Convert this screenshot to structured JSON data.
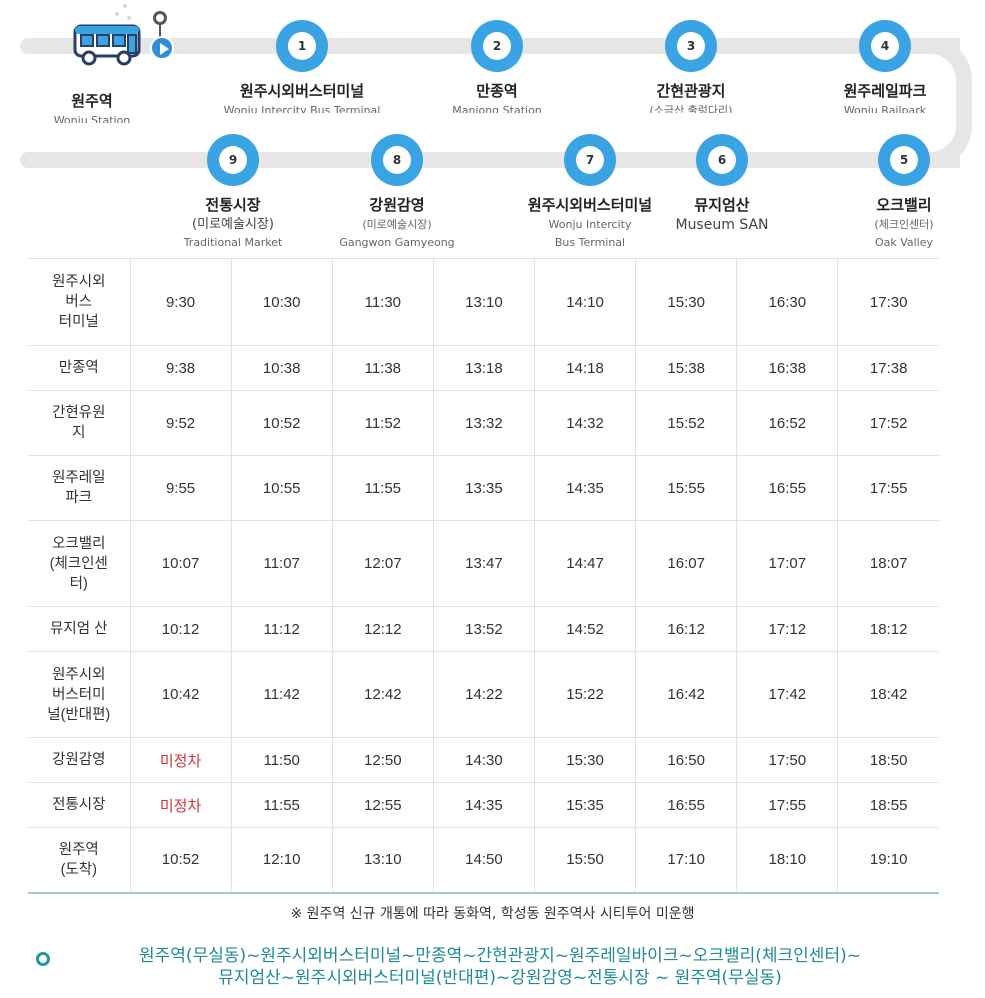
{
  "stops_top": [
    {
      "num": "",
      "name": "원주역",
      "sub": "Wonju Station"
    },
    {
      "num": "1",
      "name": "원주시외버스터미널",
      "sub": "Wonju Intercity Bus Terminal"
    },
    {
      "num": "2",
      "name": "만종역",
      "sub": "Manjong Station"
    },
    {
      "num": "3",
      "name": "간현관광지",
      "sub": "(소금산 출렁다리)"
    },
    {
      "num": "4",
      "name": "원주레일파크",
      "sub": "Wonju Railpark"
    }
  ],
  "stops_bottom": [
    {
      "num": "9",
      "name": "전통시장",
      "sub1": "(미로예술시장)",
      "sub2": "Traditional Market"
    },
    {
      "num": "8",
      "name": "강원감영",
      "sub1": "(미로예술시장)",
      "sub2": "Gangwon Gamyeong"
    },
    {
      "num": "7",
      "name": "원주시외버스터미널",
      "sub1": "Wonju Intercity",
      "sub2": "Bus Terminal"
    },
    {
      "num": "6",
      "name": "뮤지엄산",
      "sub1": "Museum SAN",
      "sub2": ""
    },
    {
      "num": "5",
      "name": "오크밸리",
      "sub1": "(체크인센터)",
      "sub2": "Oak Valley"
    }
  ],
  "timetable": {
    "rows": [
      {
        "station": "원주시외\n버스\n터미널",
        "times": [
          "9:30",
          "10:30",
          "11:30",
          "13:10",
          "14:10",
          "15:30",
          "16:30",
          "17:30"
        ]
      },
      {
        "station": "만종역",
        "times": [
          "9:38",
          "10:38",
          "11:38",
          "13:18",
          "14:18",
          "15:38",
          "16:38",
          "17:38"
        ]
      },
      {
        "station": "간현유원\n지",
        "times": [
          "9:52",
          "10:52",
          "11:52",
          "13:32",
          "14:32",
          "15:52",
          "16:52",
          "17:52"
        ]
      },
      {
        "station": "원주레일\n파크",
        "times": [
          "9:55",
          "10:55",
          "11:55",
          "13:35",
          "14:35",
          "15:55",
          "16:55",
          "17:55"
        ]
      },
      {
        "station": "오크밸리\n(체크인센\n터)",
        "times": [
          "10:07",
          "11:07",
          "12:07",
          "13:47",
          "14:47",
          "16:07",
          "17:07",
          "18:07"
        ]
      },
      {
        "station": "뮤지엄 산",
        "times": [
          "10:12",
          "11:12",
          "12:12",
          "13:52",
          "14:52",
          "16:12",
          "17:12",
          "18:12"
        ]
      },
      {
        "station": "원주시외\n버스터미\n널(반대편)",
        "times": [
          "10:42",
          "11:42",
          "12:42",
          "14:22",
          "15:22",
          "16:42",
          "17:42",
          "18:42"
        ]
      },
      {
        "station": "강원감영",
        "times": [
          "미정차",
          "11:50",
          "12:50",
          "14:30",
          "15:30",
          "16:50",
          "17:50",
          "18:50"
        ]
      },
      {
        "station": "전통시장",
        "times": [
          "미정차",
          "11:55",
          "12:55",
          "14:35",
          "15:35",
          "16:55",
          "17:55",
          "18:55"
        ]
      },
      {
        "station": "원주역\n(도착)",
        "times": [
          "10:52",
          "12:10",
          "13:10",
          "14:50",
          "15:50",
          "17:10",
          "18:10",
          "19:10"
        ]
      }
    ],
    "no_stop_label": "미정차"
  },
  "notice": "※ 원주역 신규 개통에 따라 동화역, 학성동 원주역사 시티투어 미운행",
  "route": {
    "line1": "원주역(무실동)~원주시외버스터미널~만종역~간현관광지~원주레일바이크~오크밸리(체크인센터)~",
    "line2": "뮤지엄산~원주시외버스터미널(반대편)~강원감영~전통시장 ~ 원주역(무실동)"
  },
  "colors": {
    "accent": "#3aa3e3",
    "route_text": "#1f8a94",
    "no_stop": "#d9303a"
  }
}
